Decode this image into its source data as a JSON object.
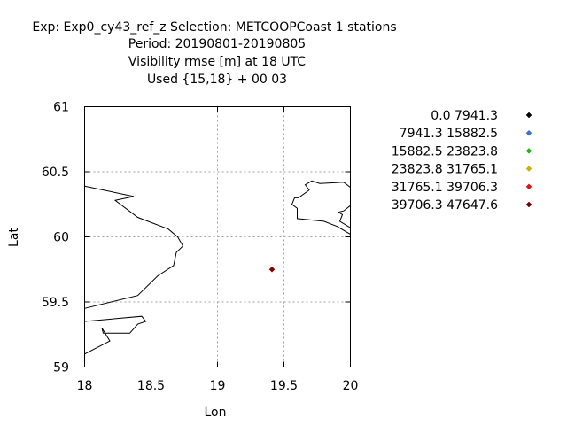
{
  "title_lines": [
    "Exp: Exp0_cy43_ref_z   Selection: METCOOPCoast      1 stations",
    "Period: 20190801-20190805",
    "Visibility rmse [m] at  18 UTC",
    "Used {15,18} + 00 03"
  ],
  "chart_data": {
    "type": "scatter",
    "xlabel": "Lon",
    "ylabel": "Lat",
    "xlim": [
      18,
      20
    ],
    "ylim": [
      59,
      61
    ],
    "x_ticks": [
      "18",
      "18.5",
      "19",
      "19.5",
      "20"
    ],
    "y_ticks": [
      "61",
      "60.5",
      "60",
      "59.5",
      "59"
    ],
    "grid": true,
    "legend_position": "right",
    "legend": [
      {
        "label": "0.0 7941.3",
        "color": "#000000"
      },
      {
        "label": "7941.3 15882.5",
        "color": "#3a6fd8"
      },
      {
        "label": "15882.5 23823.8",
        "color": "#1fb41f"
      },
      {
        "label": "23823.8 31765.1",
        "color": "#c8b400"
      },
      {
        "label": "31765.1 39706.3",
        "color": "#e01010"
      },
      {
        "label": "39706.3 47647.6",
        "color": "#7a0000"
      }
    ],
    "points": [
      {
        "lon": 19.41,
        "lat": 59.75,
        "color": "#7a0000"
      }
    ],
    "coastlines": [
      [
        [
          18.0,
          60.39
        ],
        [
          18.37,
          60.31
        ],
        [
          18.23,
          60.28
        ],
        [
          18.4,
          60.15
        ],
        [
          18.63,
          60.06
        ],
        [
          18.7,
          60.0
        ],
        [
          18.74,
          59.93
        ],
        [
          18.69,
          59.88
        ],
        [
          18.67,
          59.78
        ],
        [
          18.55,
          59.7
        ],
        [
          18.4,
          59.55
        ],
        [
          18.0,
          59.45
        ]
      ],
      [
        [
          18.0,
          59.35
        ],
        [
          18.43,
          59.39
        ],
        [
          18.46,
          59.35
        ],
        [
          18.4,
          59.33
        ],
        [
          18.34,
          59.26
        ],
        [
          18.14,
          59.26
        ],
        [
          18.13,
          59.3
        ],
        [
          18.19,
          59.2
        ],
        [
          18.0,
          59.1
        ]
      ],
      [
        [
          20.0,
          60.38
        ],
        [
          19.95,
          60.42
        ],
        [
          19.77,
          60.41
        ],
        [
          19.71,
          60.43
        ],
        [
          19.66,
          60.4
        ],
        [
          19.69,
          60.36
        ],
        [
          19.61,
          60.3
        ],
        [
          19.58,
          60.3
        ],
        [
          19.56,
          60.25
        ],
        [
          19.6,
          60.22
        ],
        [
          19.6,
          60.14
        ],
        [
          19.8,
          60.12
        ],
        [
          19.9,
          60.08
        ],
        [
          20.0,
          60.02
        ]
      ],
      [
        [
          20.0,
          60.07
        ],
        [
          19.92,
          60.12
        ],
        [
          19.94,
          60.17
        ],
        [
          19.91,
          60.19
        ],
        [
          19.95,
          60.2
        ],
        [
          20.0,
          60.24
        ]
      ]
    ]
  }
}
